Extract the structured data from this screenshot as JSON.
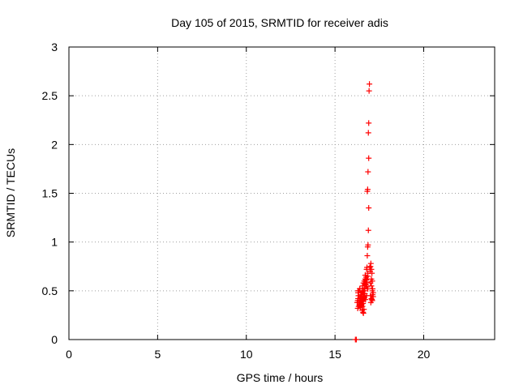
{
  "chart_data": {
    "type": "scatter",
    "title": "Day 105 of 2015, SRMTID for receiver adis",
    "xlabel": "GPS time / hours",
    "ylabel": "SRMTID / TECUs",
    "xlim": [
      0,
      24
    ],
    "ylim": [
      0,
      3
    ],
    "xticks": [
      0,
      5,
      10,
      15,
      20
    ],
    "xtick_labels": [
      "0",
      "5",
      "10",
      "15",
      "20"
    ],
    "yticks": [
      0,
      0.5,
      1,
      1.5,
      2,
      2.5,
      3
    ],
    "ytick_labels": [
      "0",
      "0.5",
      "1",
      "1.5",
      "2",
      "2.5",
      "3"
    ],
    "grid": true,
    "marker": "+",
    "color": "#ff0000",
    "series": [
      {
        "name": "SRMTID",
        "x": [
          16.15,
          16.2,
          16.25,
          16.28,
          16.3,
          16.32,
          16.35,
          16.38,
          16.4,
          16.42,
          16.45,
          16.48,
          16.5,
          16.52,
          16.55,
          16.58,
          16.6,
          16.62,
          16.65,
          16.68,
          16.3,
          16.35,
          16.4,
          16.45,
          16.5,
          16.55,
          16.6,
          16.65,
          16.28,
          16.33,
          16.38,
          16.43,
          16.48,
          16.53,
          16.58,
          16.63,
          16.3,
          16.4,
          16.5,
          16.6,
          16.55,
          16.6,
          16.65,
          16.7,
          16.75,
          16.8,
          16.6,
          16.65,
          16.7,
          16.75,
          16.8,
          16.85,
          16.62,
          16.68,
          16.72,
          16.78,
          16.5,
          16.55,
          16.6,
          16.7,
          16.75,
          16.8,
          16.85,
          16.78,
          16.8,
          16.82,
          16.84,
          16.86,
          16.88,
          16.9,
          16.82,
          16.84,
          16.86,
          16.9,
          16.88,
          16.9,
          16.92,
          16.94,
          16.96,
          16.98,
          16.85,
          17.0,
          17.02,
          17.05,
          17.08,
          17.1,
          17.12,
          17.15,
          17.0,
          17.05,
          17.1,
          17.15,
          17.02,
          17.08,
          17.12,
          17.05,
          17.1,
          17.0,
          17.05
        ],
        "y": [
          0.0,
          0.0,
          0.38,
          0.4,
          0.42,
          0.45,
          0.38,
          0.35,
          0.4,
          0.43,
          0.37,
          0.36,
          0.41,
          0.39,
          0.34,
          0.37,
          0.4,
          0.42,
          0.45,
          0.5,
          0.48,
          0.5,
          0.52,
          0.46,
          0.44,
          0.49,
          0.47,
          0.43,
          0.32,
          0.34,
          0.36,
          0.33,
          0.35,
          0.3,
          0.28,
          0.31,
          0.5,
          0.52,
          0.48,
          0.27,
          0.55,
          0.58,
          0.6,
          0.62,
          0.56,
          0.59,
          0.5,
          0.53,
          0.57,
          0.61,
          0.54,
          0.52,
          0.44,
          0.47,
          0.41,
          0.45,
          0.36,
          0.4,
          0.42,
          0.66,
          0.64,
          0.62,
          0.68,
          0.72,
          0.74,
          0.86,
          0.95,
          0.97,
          1.12,
          1.35,
          1.52,
          1.54,
          1.72,
          1.86,
          2.12,
          2.22,
          2.55,
          2.62,
          0.74,
          0.7,
          0.65,
          0.75,
          0.78,
          0.72,
          0.68,
          0.5,
          0.52,
          0.48,
          0.45,
          0.42,
          0.4,
          0.44,
          0.38,
          0.41,
          0.46,
          0.55,
          0.6,
          0.58,
          0.62
        ]
      }
    ]
  }
}
